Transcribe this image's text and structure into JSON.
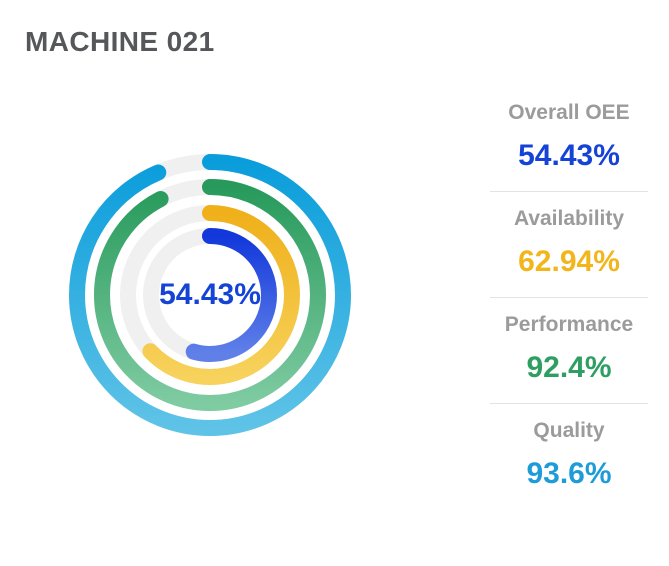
{
  "page": {
    "title": "MACHINE 021"
  },
  "chart_data": {
    "type": "multi-ring-donut",
    "title": "MACHINE 021",
    "center_label": "54.43%",
    "unit": "%",
    "start_angle_deg": -90,
    "direction": "clockwise",
    "value_range": [
      0,
      100
    ],
    "stroke_width": 16,
    "track_color": "#f0f0f1",
    "legend_position": "right",
    "rings": [
      {
        "name": "Quality",
        "value": 93.6,
        "radius": 133,
        "color_light": "#5fc3e7",
        "color_dark": "#0a9ddb"
      },
      {
        "name": "Performance",
        "value": 92.4,
        "radius": 108,
        "color_light": "#7fcba2",
        "color_dark": "#279a5b"
      },
      {
        "name": "Availability",
        "value": 62.94,
        "radius": 82,
        "color_light": "#f7d25c",
        "color_dark": "#efb01a"
      },
      {
        "name": "Overall OEE",
        "value": 54.43,
        "radius": 59,
        "color_light": "#6080e8",
        "color_dark": "#1238db"
      }
    ]
  },
  "stats": {
    "items": [
      {
        "label": "Overall OEE",
        "value": "54.43%",
        "color": "#1443d6"
      },
      {
        "label": "Availability",
        "value": "62.94%",
        "color": "#f2b51c"
      },
      {
        "label": "Performance",
        "value": "92.4%",
        "color": "#2f9e62"
      },
      {
        "label": "Quality",
        "value": "93.6%",
        "color": "#1e9cd8"
      }
    ]
  }
}
